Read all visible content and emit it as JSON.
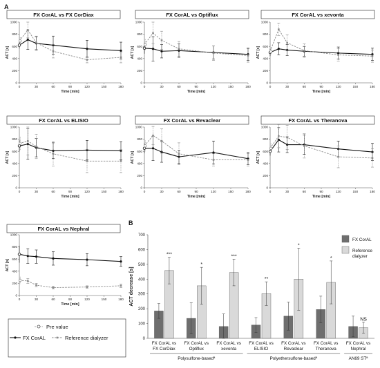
{
  "panel_labels": {
    "a": "A",
    "b": "B"
  },
  "line_legend": {
    "pre": "Pre value",
    "fx": "FX CorAL",
    "ref": "Reference dialyzer"
  },
  "colors": {
    "fx": "#111111",
    "ref": "#8a8a8a",
    "bar_fx": "#6e6e6e",
    "bar_ref": "#d9d9d9"
  },
  "chart_data": [
    {
      "type": "line",
      "title": "FX CorAL vs FX CorDiax",
      "xlabel": "Time [min]",
      "ylabel": "ACT [s]",
      "xlim": [
        0,
        180
      ],
      "ylim": [
        0,
        1000
      ],
      "xticks": [
        0,
        30,
        60,
        90,
        120,
        150,
        180
      ],
      "yticks": [
        0,
        200,
        400,
        600,
        800,
        1000
      ],
      "pre": [
        {
          "y": 620,
          "err": 55
        },
        {
          "y": 690,
          "err": 60
        }
      ],
      "series": [
        {
          "name": "FX CorAL",
          "x": [
            15,
            30,
            60,
            120,
            180
          ],
          "y": [
            710,
            650,
            620,
            560,
            530
          ],
          "err": [
            160,
            110,
            150,
            140,
            140
          ]
        },
        {
          "name": "Reference dialyzer",
          "x": [
            15,
            30,
            60,
            120,
            180
          ],
          "y": [
            870,
            660,
            520,
            380,
            420
          ],
          "err": [
            130,
            110,
            110,
            50,
            90
          ]
        }
      ]
    },
    {
      "type": "line",
      "title": "FX CorAL vs Optiflux",
      "xlabel": "Time [min]",
      "ylabel": "ACT [s]",
      "xlim": [
        0,
        180
      ],
      "ylim": [
        0,
        1000
      ],
      "xticks": [
        0,
        30,
        60,
        90,
        120,
        150,
        180
      ],
      "yticks": [
        0,
        200,
        400,
        600,
        800,
        1000
      ],
      "pre": [
        {
          "y": 570,
          "err": 90
        },
        {
          "y": 630,
          "err": 90
        }
      ],
      "series": [
        {
          "name": "FX CorAL",
          "x": [
            15,
            30,
            60,
            120,
            180
          ],
          "y": [
            560,
            520,
            530,
            500,
            470
          ],
          "err": [
            200,
            110,
            110,
            110,
            100
          ]
        },
        {
          "name": "Reference dialyzer",
          "x": [
            15,
            30,
            60,
            120,
            180
          ],
          "y": [
            820,
            700,
            560,
            490,
            450
          ],
          "err": [
            180,
            150,
            120,
            120,
            110
          ]
        }
      ]
    },
    {
      "type": "line",
      "title": "FX CorAL vs xevonta",
      "xlabel": "Time [min]",
      "ylabel": "ACT [s]",
      "xlim": [
        0,
        180
      ],
      "ylim": [
        0,
        1000
      ],
      "xticks": [
        0,
        30,
        60,
        90,
        120,
        150,
        180
      ],
      "yticks": [
        0,
        200,
        400,
        600,
        800,
        1000
      ],
      "pre": [
        {
          "y": 500,
          "err": 60
        },
        {
          "y": 520,
          "err": 60
        }
      ],
      "series": [
        {
          "name": "FX CorAL",
          "x": [
            15,
            30,
            60,
            120,
            180
          ],
          "y": [
            560,
            540,
            520,
            490,
            470
          ],
          "err": [
            100,
            90,
            80,
            100,
            100
          ]
        },
        {
          "name": "Reference dialyzer",
          "x": [
            15,
            30,
            60,
            120,
            180
          ],
          "y": [
            880,
            660,
            530,
            460,
            440
          ],
          "err": [
            100,
            130,
            110,
            100,
            100
          ]
        }
      ]
    },
    {
      "type": "line",
      "title": "FX CorAL vs ELISIO",
      "xlabel": "Time [min]",
      "ylabel": "ACT [s]",
      "xlim": [
        0,
        180
      ],
      "ylim": [
        0,
        1000
      ],
      "xticks": [
        0,
        30,
        60,
        90,
        120,
        150,
        180
      ],
      "yticks": [
        0,
        200,
        400,
        600,
        800,
        1000
      ],
      "pre": [
        {
          "y": 690,
          "err": 90
        },
        {
          "y": 730,
          "err": 110
        }
      ],
      "series": [
        {
          "name": "FX CorAL",
          "x": [
            15,
            30,
            60,
            120,
            180
          ],
          "y": [
            720,
            660,
            610,
            620,
            610
          ],
          "err": [
            250,
            150,
            130,
            160,
            150
          ]
        },
        {
          "name": "Reference dialyzer",
          "x": [
            15,
            30,
            60,
            120,
            180
          ],
          "y": [
            770,
            680,
            560,
            440,
            440
          ],
          "err": [
            230,
            200,
            200,
            190,
            190
          ]
        }
      ]
    },
    {
      "type": "line",
      "title": "FX CorAL vs Revaclear",
      "xlabel": "Time [min]",
      "ylabel": "ACT [s]",
      "xlim": [
        0,
        180
      ],
      "ylim": [
        0,
        1000
      ],
      "xticks": [
        0,
        30,
        60,
        90,
        120,
        150,
        180
      ],
      "yticks": [
        0,
        200,
        400,
        600,
        800,
        1000
      ],
      "pre": [
        {
          "y": 650,
          "err": 80
        },
        {
          "y": 690,
          "err": 90
        }
      ],
      "series": [
        {
          "name": "FX CorAL",
          "x": [
            15,
            30,
            60,
            120,
            180
          ],
          "y": [
            650,
            590,
            510,
            580,
            480
          ],
          "err": [
            200,
            170,
            110,
            190,
            100
          ]
        },
        {
          "name": "Reference dialyzer",
          "x": [
            15,
            30,
            60,
            120,
            180
          ],
          "y": [
            860,
            770,
            560,
            460,
            460
          ],
          "err": [
            150,
            200,
            180,
            100,
            100
          ]
        }
      ]
    },
    {
      "type": "line",
      "title": "FX CorAL vs Theranova",
      "xlabel": "Time [min]",
      "ylabel": "ACT [s]",
      "xlim": [
        0,
        180
      ],
      "ylim": [
        0,
        1000
      ],
      "xticks": [
        0,
        30,
        60,
        90,
        120,
        150,
        180
      ],
      "yticks": [
        0,
        200,
        400,
        600,
        800,
        1000
      ],
      "pre": [
        {
          "y": 600,
          "err": 70
        },
        {
          "y": 650,
          "err": 80
        }
      ],
      "series": [
        {
          "name": "FX CorAL",
          "x": [
            15,
            30,
            60,
            120,
            180
          ],
          "y": [
            790,
            710,
            710,
            640,
            590
          ],
          "err": [
            200,
            130,
            160,
            130,
            140
          ]
        },
        {
          "name": "Reference dialyzer",
          "x": [
            15,
            30,
            60,
            120,
            180
          ],
          "y": [
            850,
            830,
            690,
            510,
            490
          ],
          "err": [
            190,
            200,
            200,
            180,
            150
          ]
        }
      ]
    },
    {
      "type": "line",
      "title": "FX CorAL vs Nephral",
      "xlabel": "Time [min]",
      "ylabel": "ACT [s]",
      "xlim": [
        0,
        180
      ],
      "ylim": [
        0,
        1000
      ],
      "xticks": [
        0,
        30,
        60,
        90,
        120,
        150,
        180
      ],
      "yticks": [
        0,
        200,
        400,
        600,
        800,
        1000
      ],
      "pre": [
        {
          "y": 680,
          "err": 140
        },
        {
          "y": 250,
          "err": 60
        }
      ],
      "series": [
        {
          "name": "FX CorAL",
          "x": [
            15,
            30,
            60,
            120,
            180
          ],
          "y": [
            650,
            640,
            610,
            590,
            560
          ],
          "err": [
            120,
            110,
            110,
            100,
            80
          ]
        },
        {
          "name": "Reference dialyzer",
          "x": [
            15,
            30,
            60,
            120,
            180
          ],
          "y": [
            240,
            170,
            130,
            140,
            160
          ],
          "err": [
            40,
            30,
            20,
            20,
            30
          ]
        }
      ]
    },
    {
      "type": "bar",
      "title": "",
      "ylabel": "ACT decrease [s]",
      "ylim": [
        0,
        700
      ],
      "yticks": [
        0,
        100,
        200,
        300,
        400,
        500,
        600,
        700
      ],
      "categories": [
        [
          "FX CorAL vs",
          "FX CorDiax"
        ],
        [
          "FX CorAL vs",
          "Optiflux"
        ],
        [
          "FX CorAL vs",
          "xevonta"
        ],
        [
          "FX CorAL vs",
          "ELISIO"
        ],
        [
          "FX CorAL vs",
          "Revaclear"
        ],
        [
          "FX CorAL vs",
          "Theranova"
        ],
        [
          "FX CorAL vs",
          "Nephral"
        ]
      ],
      "series": [
        {
          "name": "FX CorAL",
          "values": [
            185,
            135,
            80,
            90,
            150,
            195,
            80
          ],
          "err": [
            50,
            105,
            85,
            50,
            95,
            90,
            70
          ]
        },
        {
          "name": "Reference dialyzer",
          "values": [
            458,
            355,
            445,
            302,
            400,
            378,
            72
          ],
          "err": [
            90,
            125,
            90,
            80,
            210,
            145,
            38
          ]
        }
      ],
      "significance": [
        "***",
        "*",
        "***",
        "**",
        "*",
        "*",
        "NS"
      ],
      "groups": [
        {
          "label": "Polysulfone-basedª",
          "categories": [
            0,
            1,
            2
          ]
        },
        {
          "label": "Polyethersulfone-basedª",
          "categories": [
            3,
            4,
            5
          ]
        },
        {
          "label": "AN69 STª",
          "categories": [
            6
          ]
        }
      ],
      "legend": [
        "FX CorAL",
        "Reference",
        "dialyzer"
      ],
      "legend_position": "top-right"
    }
  ]
}
